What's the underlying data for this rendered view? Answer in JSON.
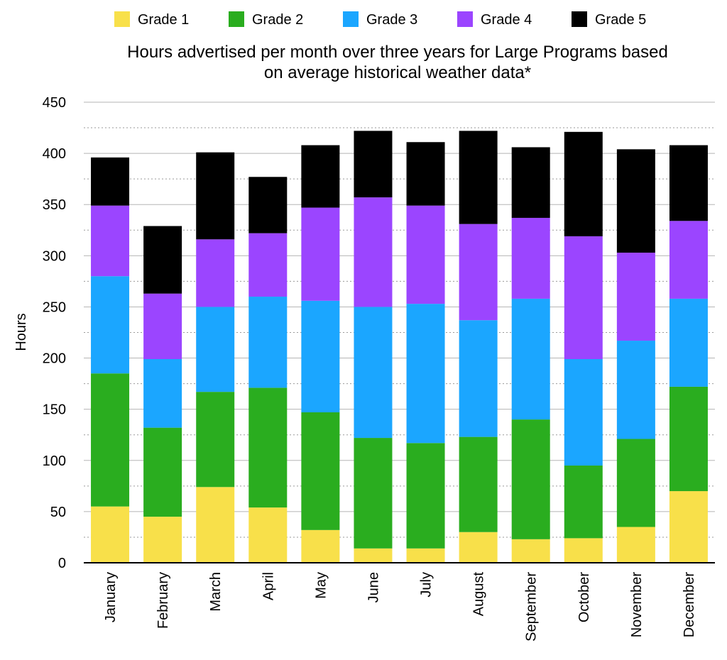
{
  "chart_data": {
    "type": "bar",
    "stacked": true,
    "title_lines": [
      "Hours advertised per month over three years for Large Programs based",
      "on average historical weather data*"
    ],
    "xlabel": "",
    "ylabel": "Hours",
    "ylim": [
      0,
      450
    ],
    "yticks": [
      0,
      50,
      100,
      150,
      200,
      250,
      300,
      350,
      400,
      450
    ],
    "grid": "horizontal",
    "legend_position": "top",
    "categories": [
      "January",
      "February",
      "March",
      "April",
      "May",
      "June",
      "July",
      "August",
      "September",
      "October",
      "November",
      "December"
    ],
    "series": [
      {
        "name": "Grade 1",
        "color": "#f8e04a",
        "values": [
          55,
          45,
          74,
          54,
          32,
          14,
          14,
          30,
          23,
          24,
          35,
          70
        ]
      },
      {
        "name": "Grade 2",
        "color": "#2aad1f",
        "values": [
          130,
          87,
          93,
          117,
          115,
          108,
          103,
          93,
          117,
          71,
          86,
          102
        ]
      },
      {
        "name": "Grade 3",
        "color": "#1ba6ff",
        "values": [
          95,
          67,
          83,
          89,
          109,
          128,
          136,
          114,
          118,
          104,
          96,
          86
        ]
      },
      {
        "name": "Grade 4",
        "color": "#9b45ff",
        "values": [
          69,
          64,
          66,
          62,
          91,
          107,
          96,
          94,
          79,
          120,
          86,
          76
        ]
      },
      {
        "name": "Grade 5",
        "color": "#000000",
        "values": [
          47,
          66,
          85,
          55,
          61,
          65,
          62,
          91,
          69,
          102,
          101,
          74
        ]
      }
    ]
  }
}
